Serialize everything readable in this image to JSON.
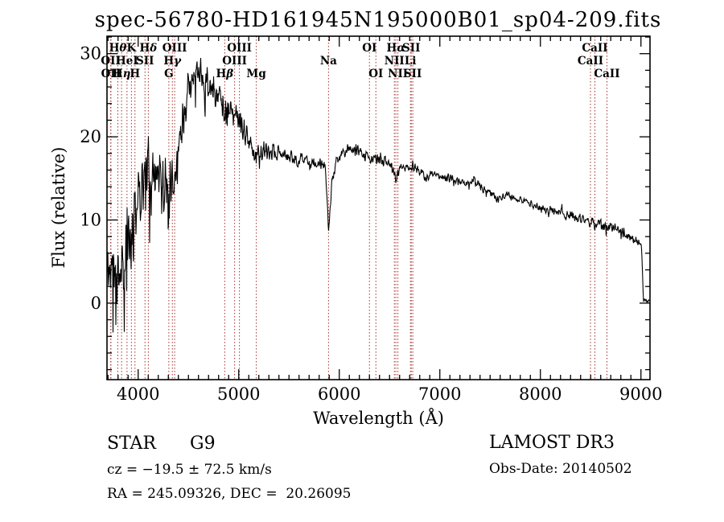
{
  "title": "spec-56780-HD161945N195000B01_sp04-209.fits",
  "footer": {
    "class_label": "STAR",
    "subclass": "G9",
    "cz_line": "cz = −19.5 ± 72.5 km/s",
    "radec_line": "RA = 245.09326, DEC =  20.26095",
    "survey": "LAMOST DR3",
    "obs_date_line": "Obs-Date: 20140502"
  },
  "chart_data": {
    "type": "line",
    "title": "spec-56780-HD161945N195000B01_sp04-209.fits",
    "xlabel": "Wavelength (Å)",
    "ylabel": "Flux (relative)",
    "xlim": [
      3690,
      9090
    ],
    "ylim": [
      -9.2,
      32.1
    ],
    "x_major_ticks": [
      4000,
      5000,
      6000,
      7000,
      8000,
      9000
    ],
    "x_minor_step": 100,
    "y_major_ticks": [
      0,
      10,
      20,
      30
    ],
    "y_minor_step": 2,
    "grid": false,
    "line_color": "#000000",
    "marker_line_color": "#a5302f",
    "spectral_lines": [
      {
        "label": "Hθ",
        "wavelength": 3798,
        "row": 0
      },
      {
        "label": "K",
        "wavelength": 3933,
        "row": 0
      },
      {
        "label": "Hδ",
        "wavelength": 4101,
        "row": 0
      },
      {
        "label": "OIII",
        "wavelength": 4363,
        "row": 0
      },
      {
        "label": "OIII",
        "wavelength": 5007,
        "row": 0
      },
      {
        "label": "OI",
        "wavelength": 6300,
        "row": 0
      },
      {
        "label": "Hα",
        "wavelength": 6563,
        "row": 0
      },
      {
        "label": "SII",
        "wavelength": 6716,
        "row": 0
      },
      {
        "label": "CaII",
        "wavelength": 8542,
        "row": 0
      },
      {
        "label": "OII",
        "wavelength": 3727,
        "row": 1
      },
      {
        "label": "HeI",
        "wavelength": 3889,
        "row": 1
      },
      {
        "label": "SII",
        "wavelength": 4068,
        "row": 1
      },
      {
        "label": "Hγ",
        "wavelength": 4340,
        "row": 1
      },
      {
        "label": "OIII",
        "wavelength": 4959,
        "row": 1
      },
      {
        "label": "Na",
        "wavelength": 5893,
        "row": 1
      },
      {
        "label": "NII",
        "wavelength": 6548,
        "row": 1
      },
      {
        "label": "Li",
        "wavelength": 6708,
        "row": 1
      },
      {
        "label": "CaII",
        "wavelength": 8498,
        "row": 1
      },
      {
        "label": "OII",
        "wavelength": 3729,
        "row": 2
      },
      {
        "label": "Hη",
        "wavelength": 3835,
        "row": 2
      },
      {
        "label": "H",
        "wavelength": 3968,
        "row": 2
      },
      {
        "label": "G",
        "wavelength": 4305,
        "row": 2
      },
      {
        "label": "Hβ",
        "wavelength": 4861,
        "row": 2
      },
      {
        "label": "Mg",
        "wavelength": 5175,
        "row": 2
      },
      {
        "label": "OI",
        "wavelength": 6364,
        "row": 2
      },
      {
        "label": "NII",
        "wavelength": 6583,
        "row": 2
      },
      {
        "label": "SII",
        "wavelength": 6731,
        "row": 2
      },
      {
        "label": "CaII",
        "wavelength": 8662,
        "row": 2
      }
    ],
    "continuum_points": [
      [
        3690,
        3.5
      ],
      [
        3740,
        4.5
      ],
      [
        3800,
        5
      ],
      [
        3850,
        5.5
      ],
      [
        3900,
        6.5
      ],
      [
        3950,
        7.5
      ],
      [
        4000,
        13
      ],
      [
        4060,
        15
      ],
      [
        4120,
        15.5
      ],
      [
        4180,
        15
      ],
      [
        4240,
        14.5
      ],
      [
        4300,
        13.5
      ],
      [
        4340,
        15
      ],
      [
        4380,
        17
      ],
      [
        4420,
        20
      ],
      [
        4460,
        23.5
      ],
      [
        4500,
        26.5
      ],
      [
        4540,
        27.5
      ],
      [
        4600,
        27.5
      ],
      [
        4650,
        27
      ],
      [
        4700,
        26.5
      ],
      [
        4760,
        25.5
      ],
      [
        4820,
        24.5
      ],
      [
        4861,
        23
      ],
      [
        4900,
        23.5
      ],
      [
        4960,
        22.5
      ],
      [
        5020,
        21.5
      ],
      [
        5080,
        20
      ],
      [
        5130,
        19
      ],
      [
        5175,
        17.8
      ],
      [
        5220,
        18.2
      ],
      [
        5300,
        18.3
      ],
      [
        5400,
        18
      ],
      [
        5500,
        17.6
      ],
      [
        5600,
        17.2
      ],
      [
        5700,
        17
      ],
      [
        5800,
        16.7
      ],
      [
        5860,
        16.4
      ],
      [
        5893,
        8.5
      ],
      [
        5925,
        14.5
      ],
      [
        5970,
        16.8
      ],
      [
        6030,
        18
      ],
      [
        6090,
        18.7
      ],
      [
        6150,
        18.5
      ],
      [
        6250,
        17.8
      ],
      [
        6350,
        17.3
      ],
      [
        6450,
        17.1
      ],
      [
        6520,
        16.9
      ],
      [
        6563,
        14.8
      ],
      [
        6610,
        16.5
      ],
      [
        6700,
        16.3
      ],
      [
        6800,
        16.1
      ],
      [
        6865,
        15
      ],
      [
        6910,
        15.6
      ],
      [
        7000,
        15.3
      ],
      [
        7100,
        15
      ],
      [
        7200,
        14.6
      ],
      [
        7280,
        14.2
      ],
      [
        7350,
        14.9
      ],
      [
        7420,
        13.9
      ],
      [
        7500,
        13.3
      ],
      [
        7590,
        12.4
      ],
      [
        7660,
        12.9
      ],
      [
        7760,
        12.6
      ],
      [
        7860,
        12.2
      ],
      [
        7960,
        11.7
      ],
      [
        8060,
        11.2
      ],
      [
        8160,
        11
      ],
      [
        8260,
        10.6
      ],
      [
        8360,
        10.3
      ],
      [
        8460,
        10
      ],
      [
        8498,
        9.4
      ],
      [
        8520,
        9.9
      ],
      [
        8542,
        9.2
      ],
      [
        8580,
        9.7
      ],
      [
        8625,
        9.4
      ],
      [
        8662,
        8.9
      ],
      [
        8710,
        9.2
      ],
      [
        8800,
        8.6
      ],
      [
        8900,
        7.9
      ],
      [
        8980,
        7.3
      ],
      [
        9005,
        7
      ],
      [
        9015,
        4
      ],
      [
        9025,
        0.4
      ],
      [
        9060,
        0.3
      ],
      [
        9085,
        0.2
      ]
    ],
    "noise_amplitude": [
      [
        3690,
        4.5
      ],
      [
        3950,
        4.8
      ],
      [
        4000,
        4
      ],
      [
        4100,
        3.2
      ],
      [
        4250,
        3.2
      ],
      [
        4400,
        2.6
      ],
      [
        4600,
        2.2
      ],
      [
        4800,
        1.8
      ],
      [
        5000,
        1.4
      ],
      [
        5200,
        1.1
      ],
      [
        5500,
        0.9
      ],
      [
        5900,
        0.7
      ],
      [
        6200,
        0.65
      ],
      [
        6600,
        0.55
      ],
      [
        7000,
        0.5
      ],
      [
        7400,
        0.5
      ],
      [
        7800,
        0.5
      ],
      [
        8200,
        0.55
      ],
      [
        8600,
        0.6
      ],
      [
        8950,
        0.5
      ],
      [
        9010,
        0.4
      ],
      [
        9085,
        0.1
      ]
    ],
    "noise_seed": 11,
    "sample_step_angstrom": 4
  }
}
